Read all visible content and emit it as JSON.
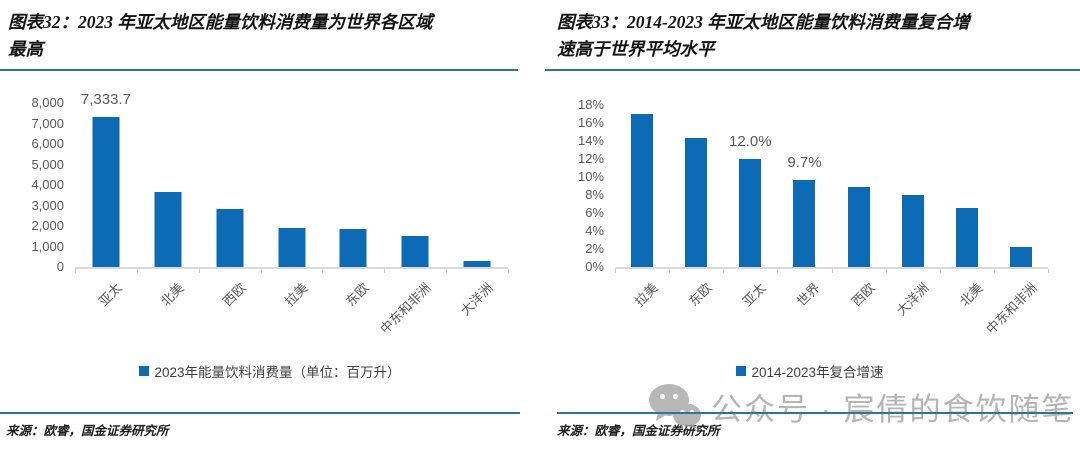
{
  "page": {
    "watermark_text": "公众号 · 宸倩的食饮随笔"
  },
  "colors": {
    "bar_blue": "#0d6ab5",
    "rule_teal": "#2e7499",
    "axis_text_gray": "#595959",
    "baseline_gray": "#d9d9d9",
    "watermark_gray": "#b5b5b5"
  },
  "figures": [
    {
      "title_line1": "图表32：2023 年亚太地区能量饮料消费量为世界各区域",
      "title_line2": "最高",
      "legend_label": "2023年能量饮料消费量（单位：百万升）",
      "source": "来源：欧睿，国金证券研究所"
    },
    {
      "title_line1": "图表33：2014-2023 年亚太地区能量饮料消费量复合增",
      "title_line2": "速高于世界平均水平",
      "legend_label": "2014-2023年复合增速",
      "source": "来源：欧睿，国金证券研究所"
    }
  ],
  "chart_data": [
    {
      "type": "bar",
      "title": "2023年各区域能量饮料消费量（百万升）",
      "categories": [
        "亚太",
        "北美",
        "西欧",
        "拉美",
        "东欧",
        "中东和非洲",
        "大洋洲"
      ],
      "values": [
        7333.7,
        3650,
        2850,
        1900,
        1870,
        1500,
        280
      ],
      "data_labels": [
        "7,333.7",
        null,
        null,
        null,
        null,
        null,
        null
      ],
      "ylim": [
        0,
        8000
      ],
      "ytick_labels": [
        "0",
        "1,000",
        "2,000",
        "3,000",
        "4,000",
        "5,000",
        "6,000",
        "7,000",
        "8,000"
      ],
      "xlabel": "",
      "ylabel": "百万升",
      "grid": false,
      "legend_position": "bottom",
      "legend": "2023年能量饮料消费量（单位：百万升）"
    },
    {
      "type": "bar",
      "title": "2014-2023年能量饮料消费量复合增速（%）",
      "categories": [
        "拉美",
        "东欧",
        "亚太",
        "世界",
        "西欧",
        "大洋洲",
        "北美",
        "中东和非洲"
      ],
      "values": [
        17.0,
        14.3,
        12.0,
        9.7,
        8.9,
        8.0,
        6.6,
        2.2
      ],
      "data_labels": [
        null,
        null,
        "12.0%",
        "9.7%",
        null,
        null,
        null,
        null
      ],
      "ylim": [
        0,
        18
      ],
      "ytick_labels": [
        "0%",
        "2%",
        "4%",
        "6%",
        "8%",
        "10%",
        "12%",
        "14%",
        "16%",
        "18%"
      ],
      "xlabel": "",
      "ylabel": "%",
      "grid": false,
      "legend_position": "bottom",
      "legend": "2014-2023年复合增速"
    }
  ]
}
